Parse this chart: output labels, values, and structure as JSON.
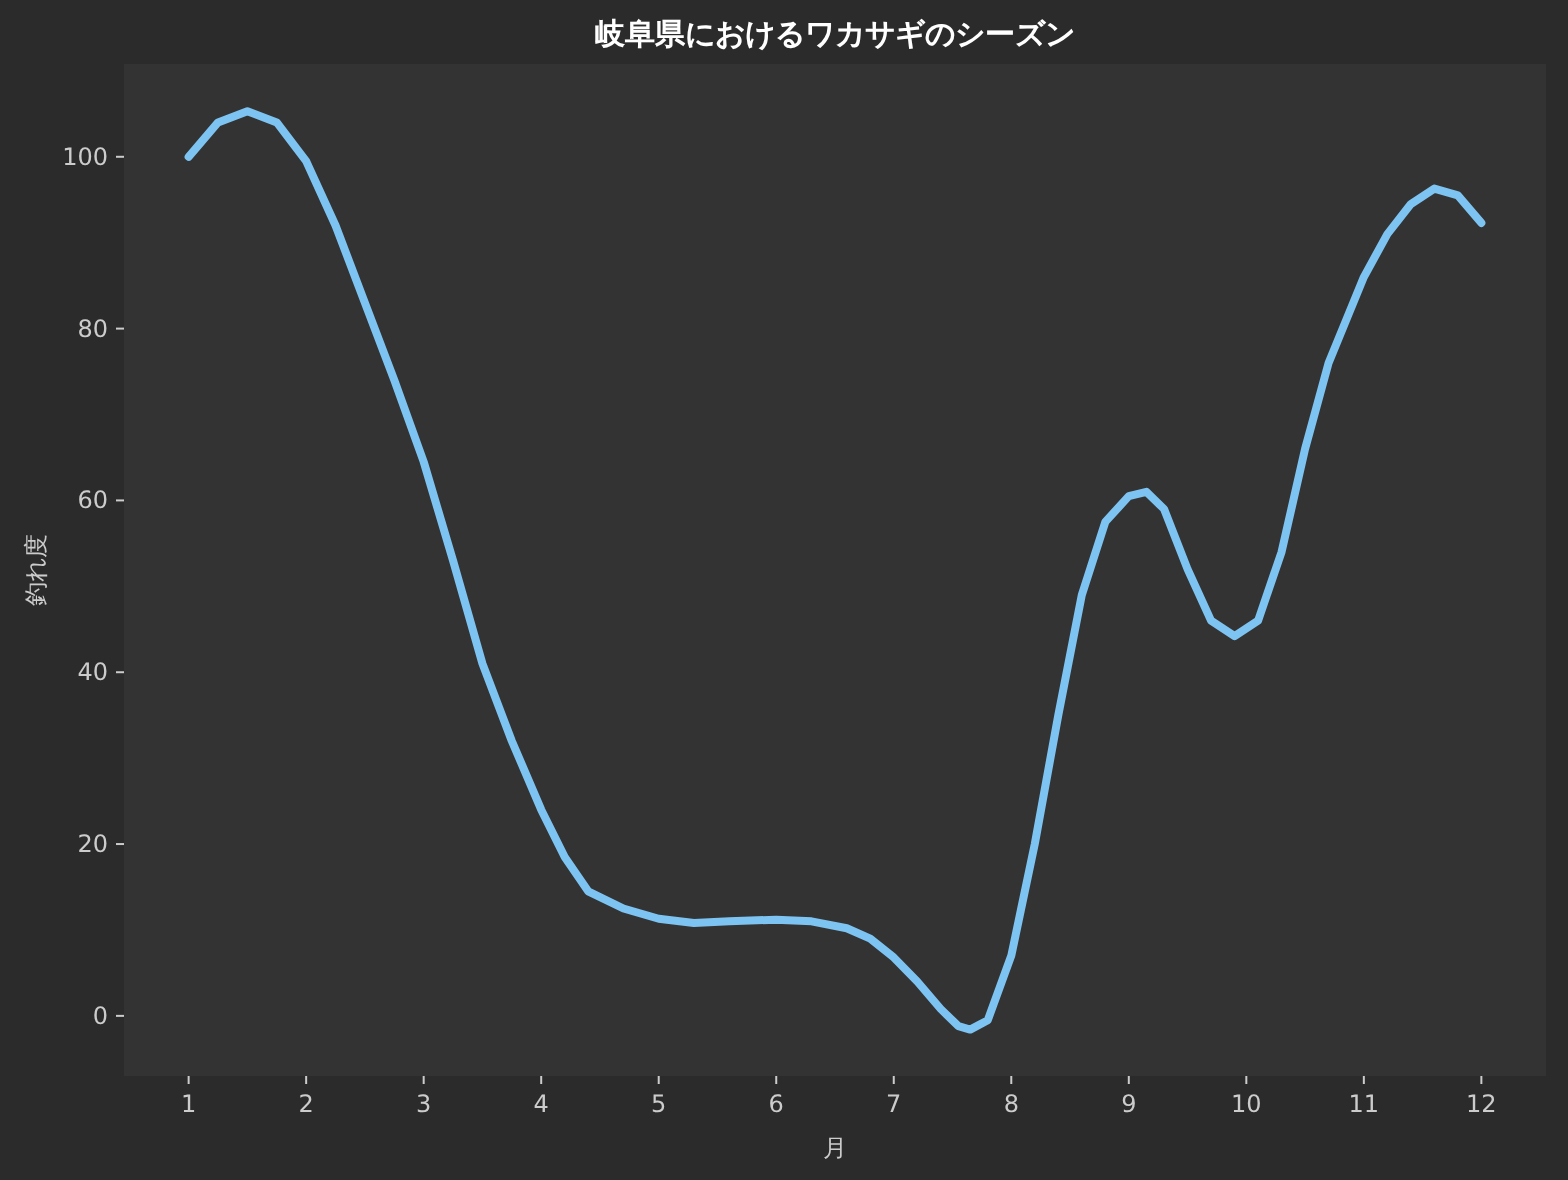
{
  "chart_data": {
    "type": "line",
    "title": "岐阜県におけるワカサギのシーズン",
    "xlabel": "月",
    "ylabel": "釣れ度",
    "series": [
      {
        "color": "#7ec4f2",
        "x": [
          1,
          1.25,
          1.5,
          1.75,
          2,
          2.25,
          2.5,
          2.75,
          3,
          3.25,
          3.5,
          3.75,
          4,
          4.2,
          4.4,
          4.7,
          5,
          5.3,
          5.6,
          6,
          6.3,
          6.6,
          6.8,
          7,
          7.2,
          7.4,
          7.55,
          7.65,
          7.8,
          8,
          8.2,
          8.4,
          8.6,
          8.8,
          9,
          9.15,
          9.3,
          9.5,
          9.7,
          9.9,
          10.1,
          10.3,
          10.5,
          10.7,
          11,
          11.2,
          11.4,
          11.6,
          11.8,
          12
        ],
        "values": [
          100,
          104,
          105.3,
          104,
          99.5,
          92,
          83,
          74,
          64.5,
          53,
          41,
          32,
          24,
          18.5,
          14.5,
          12.5,
          11.3,
          10.8,
          11,
          11.2,
          11,
          10.2,
          9,
          6.8,
          4,
          0.8,
          -1.2,
          -1.6,
          -0.5,
          7,
          20,
          35,
          49,
          57.5,
          60.5,
          61,
          59,
          52,
          46,
          44.2,
          46,
          54,
          66,
          76,
          86,
          91,
          94.5,
          96.3,
          95.5,
          92.3
        ]
      }
    ],
    "xlim": [
      0.45,
      12.55
    ],
    "ylim": [
      -7,
      110.8
    ],
    "xticks": [
      1,
      2,
      3,
      4,
      5,
      6,
      7,
      8,
      9,
      10,
      11,
      12
    ],
    "yticks": [
      0,
      20,
      40,
      60,
      80,
      100
    ],
    "grid": false,
    "marker": "none",
    "line_style": "solid"
  }
}
